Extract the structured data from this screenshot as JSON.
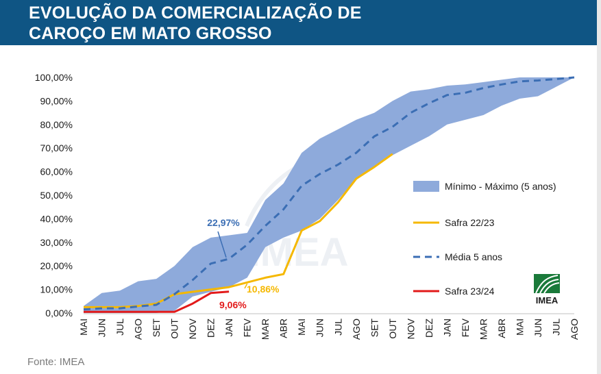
{
  "header": {
    "title_line1": "EVOLUÇÃO DA COMERCIALIZAÇÃO DE",
    "title_line2": "CAROÇO EM MATO GROSSO"
  },
  "footer": {
    "source": "Fonte: IMEA"
  },
  "watermark": {
    "text": "IMEA"
  },
  "colors": {
    "banner": "#0f5584",
    "band": "#8eaadb",
    "safra_2223": "#f5b800",
    "media": "#3b6eb4",
    "safra_2324": "#e21a1a",
    "annot_media": "#3b6eb4",
    "annot_2223": "#f5b800",
    "annot_2324": "#e21a1a"
  },
  "chart_data": {
    "type": "area",
    "categories": [
      "MAI",
      "JUN",
      "JUL",
      "AGO",
      "SET",
      "OUT",
      "NOV",
      "DEZ",
      "JAN",
      "FEV",
      "MAR",
      "ABR",
      "MAI",
      "JUN",
      "JUL",
      "AGO",
      "SET",
      "OUT",
      "NOV",
      "DEZ",
      "JAN",
      "FEV",
      "MAR",
      "ABR",
      "MAI",
      "JUN",
      "JUL",
      "AGO"
    ],
    "y_ticks": [
      "0,00%",
      "10,00%",
      "20,00%",
      "30,00%",
      "40,00%",
      "50,00%",
      "60,00%",
      "70,00%",
      "80,00%",
      "90,00%",
      "100,00%"
    ],
    "ylim": [
      0,
      100
    ],
    "grid": false,
    "legend_position": "right",
    "band": {
      "name": "Mínimo - Máximo (5 anos)",
      "min": [
        0,
        0,
        0,
        0,
        0,
        1,
        7,
        9,
        11,
        15,
        28,
        32,
        35,
        40,
        48,
        57,
        62,
        67,
        71,
        75,
        80,
        82,
        84,
        88,
        91,
        92,
        96,
        100
      ],
      "max": [
        3,
        8.5,
        9.5,
        13.5,
        14.5,
        20,
        28,
        32,
        33,
        34,
        48,
        55,
        68,
        74,
        78,
        82,
        85,
        90,
        94,
        95,
        96.5,
        97,
        98,
        99,
        100,
        100,
        100,
        100
      ]
    },
    "series": [
      {
        "name": "Safra 22/23",
        "values": [
          2.5,
          2.5,
          2.5,
          3,
          4,
          8,
          9,
          10,
          11,
          13,
          15,
          16.5,
          35,
          39,
          47,
          57,
          62,
          67.5,
          null,
          null,
          null,
          null,
          null,
          null,
          null,
          null,
          null,
          null
        ]
      },
      {
        "name": "Média 5 anos",
        "values": [
          1.5,
          2,
          2,
          2.8,
          3.5,
          8,
          14,
          21,
          23,
          29,
          37,
          44,
          54,
          59,
          63,
          68,
          75,
          79,
          85,
          89,
          92.5,
          93.5,
          95.5,
          97,
          98.3,
          98.7,
          99.3,
          100
        ]
      },
      {
        "name": "Safra 23/24",
        "values": [
          0.5,
          0.5,
          0.5,
          0.5,
          0.5,
          0.5,
          4,
          8.5,
          9.06,
          null,
          null,
          null,
          null,
          null,
          null,
          null,
          null,
          null,
          null,
          null,
          null,
          null,
          null,
          null,
          null,
          null,
          null,
          null
        ]
      }
    ],
    "annotations": [
      {
        "text": "22,97%",
        "series": "Média 5 anos"
      },
      {
        "text": "10,86%",
        "series": "Safra 22/23"
      },
      {
        "text": "9,06%",
        "series": "Safra 23/24"
      }
    ]
  }
}
